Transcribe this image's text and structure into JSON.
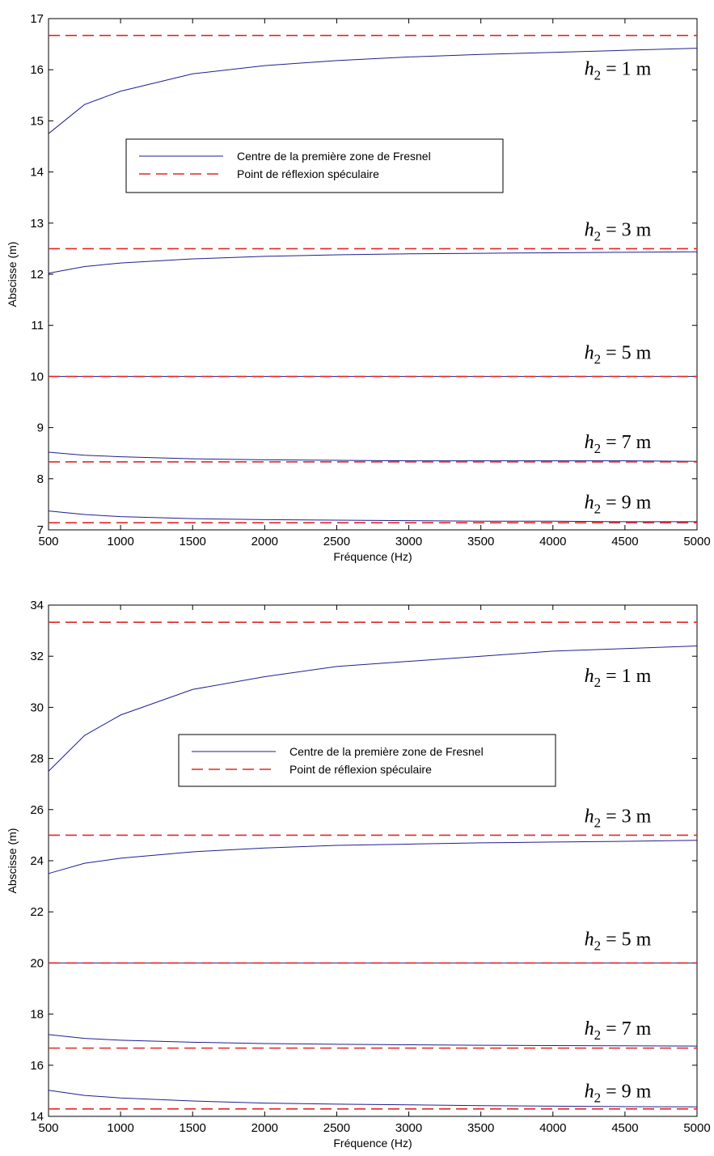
{
  "chart_data": [
    {
      "type": "line",
      "xlabel": "Fréquence (Hz)",
      "ylabel": "Abscisse (m)",
      "xlim": [
        500,
        5000
      ],
      "ylim": [
        7,
        17
      ],
      "xticks": [
        "500",
        "1000",
        "1500",
        "2000",
        "2500",
        "3000",
        "3500",
        "4000",
        "4500",
        "5000"
      ],
      "yticks": [
        "7",
        "8",
        "9",
        "10",
        "11",
        "12",
        "13",
        "14",
        "15",
        "16",
        "17"
      ],
      "grid": false,
      "legend": {
        "placement": "upper-left-center",
        "entries": [
          {
            "label": "Centre de la première zone de Fresnel",
            "color": "#1f1f8f",
            "style": "solid"
          },
          {
            "label": "Point de réflexion spéculaire",
            "color": "#e32727",
            "style": "dashed"
          }
        ]
      },
      "x": [
        500,
        750,
        1000,
        1500,
        2000,
        2500,
        3000,
        3500,
        4000,
        4500,
        5000
      ],
      "series": [
        {
          "legend_entry": 0,
          "values": [
            14.75,
            15.32,
            15.58,
            15.92,
            16.08,
            16.18,
            16.25,
            16.3,
            16.34,
            16.38,
            16.42
          ]
        },
        {
          "legend_entry": 1,
          "values": [
            16.67,
            16.67,
            16.67,
            16.67,
            16.67,
            16.67,
            16.67,
            16.67,
            16.67,
            16.67,
            16.67
          ]
        },
        {
          "legend_entry": 0,
          "values": [
            12.02,
            12.15,
            12.22,
            12.3,
            12.35,
            12.38,
            12.4,
            12.41,
            12.42,
            12.43,
            12.44
          ]
        },
        {
          "legend_entry": 1,
          "values": [
            12.5,
            12.5,
            12.5,
            12.5,
            12.5,
            12.5,
            12.5,
            12.5,
            12.5,
            12.5,
            12.5
          ]
        },
        {
          "legend_entry": 0,
          "values": [
            10.0,
            10.0,
            10.0,
            10.0,
            10.0,
            10.0,
            10.0,
            10.0,
            10.0,
            10.0,
            10.0
          ]
        },
        {
          "legend_entry": 1,
          "values": [
            10.0,
            10.0,
            10.0,
            10.0,
            10.0,
            10.0,
            10.0,
            10.0,
            10.0,
            10.0,
            10.0
          ]
        },
        {
          "legend_entry": 0,
          "values": [
            8.52,
            8.46,
            8.43,
            8.39,
            8.37,
            8.36,
            8.35,
            8.35,
            8.35,
            8.35,
            8.34
          ]
        },
        {
          "legend_entry": 1,
          "values": [
            8.33,
            8.33,
            8.33,
            8.33,
            8.33,
            8.33,
            8.33,
            8.33,
            8.33,
            8.33,
            8.33
          ]
        },
        {
          "legend_entry": 0,
          "values": [
            7.37,
            7.3,
            7.26,
            7.22,
            7.2,
            7.19,
            7.18,
            7.17,
            7.17,
            7.16,
            7.16
          ]
        },
        {
          "legend_entry": 1,
          "values": [
            7.14,
            7.14,
            7.14,
            7.14,
            7.14,
            7.14,
            7.14,
            7.14,
            7.14,
            7.14,
            7.14
          ]
        }
      ],
      "annotations": [
        {
          "var": "h",
          "sub": "2",
          "text": " = 1 m",
          "x": 4450,
          "y": 15.9
        },
        {
          "var": "h",
          "sub": "2",
          "text": " = 3 m",
          "x": 4450,
          "y": 12.75
        },
        {
          "var": "h",
          "sub": "2",
          "text": " = 5 m",
          "x": 4450,
          "y": 10.35
        },
        {
          "var": "h",
          "sub": "2",
          "text": " = 7 m",
          "x": 4450,
          "y": 8.6
        },
        {
          "var": "h",
          "sub": "2",
          "text": " = 9 m",
          "x": 4450,
          "y": 7.42
        }
      ]
    },
    {
      "type": "line",
      "xlabel": "Fréquence (Hz)",
      "ylabel": "Abscisse (m)",
      "xlim": [
        500,
        5000
      ],
      "ylim": [
        14,
        34
      ],
      "xticks": [
        "500",
        "1000",
        "1500",
        "2000",
        "2500",
        "3000",
        "3500",
        "4000",
        "4500",
        "5000"
      ],
      "yticks": [
        "14",
        "16",
        "18",
        "20",
        "22",
        "24",
        "26",
        "28",
        "30",
        "32",
        "34"
      ],
      "grid": false,
      "legend": {
        "placement": "center-left",
        "entries": [
          {
            "label": "Centre de la première zone de Fresnel",
            "color": "#1f1f8f",
            "style": "solid"
          },
          {
            "label": "Point de réflexion spéculaire",
            "color": "#e32727",
            "style": "dashed"
          }
        ]
      },
      "x": [
        500,
        750,
        1000,
        1500,
        2000,
        2500,
        3000,
        3500,
        4000,
        4500,
        5000
      ],
      "series": [
        {
          "legend_entry": 0,
          "values": [
            27.5,
            28.9,
            29.7,
            30.7,
            31.2,
            31.6,
            31.8,
            32.0,
            32.2,
            32.3,
            32.4
          ]
        },
        {
          "legend_entry": 1,
          "values": [
            33.33,
            33.33,
            33.33,
            33.33,
            33.33,
            33.33,
            33.33,
            33.33,
            33.33,
            33.33,
            33.33
          ]
        },
        {
          "legend_entry": 0,
          "values": [
            23.5,
            23.9,
            24.1,
            24.35,
            24.5,
            24.6,
            24.65,
            24.7,
            24.73,
            24.76,
            24.8
          ]
        },
        {
          "legend_entry": 1,
          "values": [
            25.0,
            25.0,
            25.0,
            25.0,
            25.0,
            25.0,
            25.0,
            25.0,
            25.0,
            25.0,
            25.0
          ]
        },
        {
          "legend_entry": 0,
          "values": [
            20.0,
            20.0,
            20.0,
            20.0,
            20.0,
            20.0,
            20.0,
            20.0,
            20.0,
            20.0,
            20.0
          ]
        },
        {
          "legend_entry": 1,
          "values": [
            20.0,
            20.0,
            20.0,
            20.0,
            20.0,
            20.0,
            20.0,
            20.0,
            20.0,
            20.0,
            20.0
          ]
        },
        {
          "legend_entry": 0,
          "values": [
            17.2,
            17.05,
            16.98,
            16.9,
            16.85,
            16.82,
            16.8,
            16.78,
            16.77,
            16.76,
            16.75
          ]
        },
        {
          "legend_entry": 1,
          "values": [
            16.67,
            16.67,
            16.67,
            16.67,
            16.67,
            16.67,
            16.67,
            16.67,
            16.67,
            16.67,
            16.67
          ]
        },
        {
          "legend_entry": 0,
          "values": [
            15.02,
            14.82,
            14.72,
            14.6,
            14.52,
            14.48,
            14.45,
            14.42,
            14.4,
            14.38,
            14.37
          ]
        },
        {
          "legend_entry": 1,
          "values": [
            14.29,
            14.29,
            14.29,
            14.29,
            14.29,
            14.29,
            14.29,
            14.29,
            14.29,
            14.29,
            14.29
          ]
        }
      ],
      "annotations": [
        {
          "var": "h",
          "sub": "2",
          "text": " = 1 m",
          "x": 4450,
          "y": 31.0
        },
        {
          "var": "h",
          "sub": "2",
          "text": " = 3 m",
          "x": 4450,
          "y": 25.5
        },
        {
          "var": "h",
          "sub": "2",
          "text": " = 5 m",
          "x": 4450,
          "y": 20.7
        },
        {
          "var": "h",
          "sub": "2",
          "text": " = 7 m",
          "x": 4450,
          "y": 17.2
        },
        {
          "var": "h",
          "sub": "2",
          "text": " = 9 m",
          "x": 4450,
          "y": 14.75
        }
      ]
    }
  ]
}
